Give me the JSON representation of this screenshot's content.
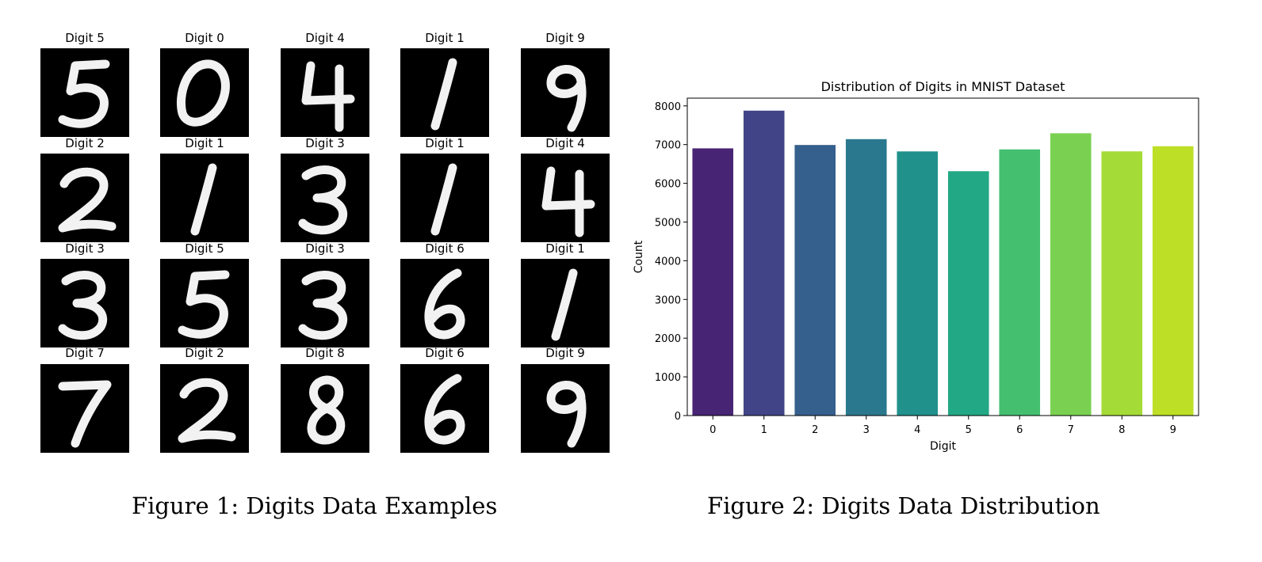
{
  "figure1": {
    "caption": "Figure 1: Digits Data Examples",
    "tile_title_prefix": "Digit",
    "rows": [
      [
        "5",
        "0",
        "4",
        "1",
        "9"
      ],
      [
        "2",
        "1",
        "3",
        "1",
        "4"
      ],
      [
        "3",
        "5",
        "3",
        "6",
        "1"
      ],
      [
        "7",
        "2",
        "8",
        "6",
        "9"
      ]
    ]
  },
  "figure2": {
    "caption": "Figure 2: Digits Data Distribution"
  },
  "chart_data": {
    "type": "bar",
    "title": "Distribution of Digits in MNIST Dataset",
    "xlabel": "Digit",
    "ylabel": "Count",
    "categories": [
      "0",
      "1",
      "2",
      "3",
      "4",
      "5",
      "6",
      "7",
      "8",
      "9"
    ],
    "values": [
      6903,
      7877,
      6990,
      7141,
      6824,
      6313,
      6876,
      7293,
      6825,
      6958
    ],
    "ylim": [
      0,
      8200
    ],
    "yticks": [
      0,
      1000,
      2000,
      3000,
      4000,
      5000,
      6000,
      7000,
      8000
    ],
    "grid": false,
    "colors": [
      "#482475",
      "#414487",
      "#355f8d",
      "#2a788e",
      "#21918c",
      "#22a884",
      "#44bf70",
      "#7ad151",
      "#a5db36",
      "#bddf26"
    ]
  }
}
